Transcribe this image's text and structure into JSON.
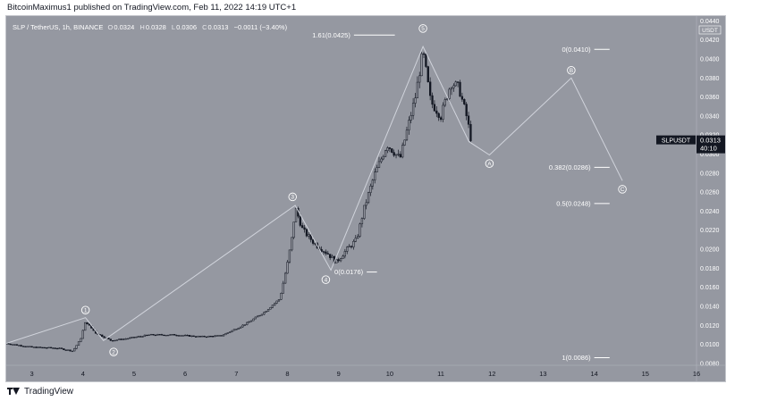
{
  "header": {
    "publish_text": "BitcoinMaximus1 published on TradingView.com, Feb 11, 2022 14:19 UTC+1"
  },
  "symbol_bar": {
    "pair": "SLP / TetherUS, 1h, BINANCE",
    "open_label": "O",
    "open": "0.0324",
    "high_label": "H",
    "high": "0.0328",
    "low_label": "L",
    "low": "0.0306",
    "close_label": "C",
    "close": "0.0313",
    "change": "−0.0011 (−3.40%)"
  },
  "footer": {
    "brand": "TradingView"
  },
  "colors": {
    "background": "#9598a1",
    "candle": "#131722",
    "wave_line": "#d1d4dc",
    "label_text": "#ffffff",
    "price_tag_bg": "#131722"
  },
  "chart_data": {
    "type": "candlestick",
    "title": "SLP / TetherUS, 1h, BINANCE",
    "ylim": [
      0.0078,
      0.0445
    ],
    "xlim": [
      2.5,
      16.0
    ],
    "y_ticks": [
      "0.0440",
      "0.0420",
      "0.0400",
      "0.0380",
      "0.0360",
      "0.0340",
      "0.0320",
      "0.0300",
      "0.0280",
      "0.0260",
      "0.0240",
      "0.0220",
      "0.0200",
      "0.0180",
      "0.0160",
      "0.0140",
      "0.0120",
      "0.0100",
      "0.0080"
    ],
    "y_tick_values": [
      0.044,
      0.042,
      0.04,
      0.038,
      0.036,
      0.034,
      0.032,
      0.03,
      0.028,
      0.026,
      0.024,
      0.022,
      0.02,
      0.018,
      0.016,
      0.014,
      0.012,
      0.01,
      0.008
    ],
    "axis_currency": "USDT",
    "x_ticks": [
      "3",
      "4",
      "5",
      "6",
      "7",
      "8",
      "9",
      "10",
      "11",
      "12",
      "13",
      "14",
      "15",
      "16"
    ],
    "x_tick_values": [
      3,
      4,
      5,
      6,
      7,
      8,
      9,
      10,
      11,
      12,
      13,
      14,
      15,
      16
    ],
    "price_path": [
      [
        2.5,
        0.0101
      ],
      [
        3.0,
        0.0097
      ],
      [
        3.5,
        0.0096
      ],
      [
        3.8,
        0.0093
      ],
      [
        3.95,
        0.0105
      ],
      [
        4.05,
        0.0124
      ],
      [
        4.25,
        0.0112
      ],
      [
        4.55,
        0.0104
      ],
      [
        4.85,
        0.0106
      ],
      [
        5.3,
        0.011
      ],
      [
        5.8,
        0.011
      ],
      [
        6.3,
        0.0108
      ],
      [
        6.7,
        0.0109
      ],
      [
        6.9,
        0.0114
      ],
      [
        7.2,
        0.0122
      ],
      [
        7.55,
        0.0134
      ],
      [
        7.85,
        0.0148
      ],
      [
        8.0,
        0.0185
      ],
      [
        8.1,
        0.0216
      ],
      [
        8.15,
        0.0244
      ],
      [
        8.3,
        0.022
      ],
      [
        8.55,
        0.0205
      ],
      [
        8.8,
        0.0195
      ],
      [
        8.95,
        0.0186
      ],
      [
        9.1,
        0.0196
      ],
      [
        9.35,
        0.021
      ],
      [
        9.5,
        0.0243
      ],
      [
        9.7,
        0.0278
      ],
      [
        9.95,
        0.031
      ],
      [
        10.2,
        0.0295
      ],
      [
        10.5,
        0.036
      ],
      [
        10.65,
        0.0408
      ],
      [
        10.8,
        0.0355
      ],
      [
        11.0,
        0.034
      ],
      [
        11.2,
        0.0375
      ],
      [
        11.35,
        0.037
      ],
      [
        11.5,
        0.034
      ],
      [
        11.6,
        0.0313
      ]
    ],
    "wave_path": [
      [
        2.5,
        0.0101
      ],
      [
        4.05,
        0.0128
      ],
      [
        4.4,
        0.0104
      ],
      [
        8.15,
        0.0246
      ],
      [
        8.85,
        0.0178
      ],
      [
        10.65,
        0.0413
      ],
      [
        11.55,
        0.0313
      ],
      [
        11.95,
        0.0299
      ],
      [
        13.55,
        0.038
      ],
      [
        14.55,
        0.0272
      ]
    ],
    "wave_labels": [
      {
        "label": "1",
        "x": 4.05,
        "y": 0.0136,
        "style": "circle"
      },
      {
        "label": "2",
        "x": 4.6,
        "y": 0.0092,
        "style": "circle"
      },
      {
        "label": "3",
        "x": 8.1,
        "y": 0.0255,
        "style": "circle"
      },
      {
        "label": "4",
        "x": 8.75,
        "y": 0.0168,
        "style": "circle"
      },
      {
        "label": "5",
        "x": 10.65,
        "y": 0.0432,
        "style": "circle"
      },
      {
        "label": "A",
        "x": 11.95,
        "y": 0.029,
        "style": "circle"
      },
      {
        "label": "B",
        "x": 13.55,
        "y": 0.0388,
        "style": "circle"
      },
      {
        "label": "C",
        "x": 14.55,
        "y": 0.0263,
        "style": "circle"
      }
    ],
    "fib_levels": [
      {
        "label": "1.61(0.0425)",
        "value": 0.0425,
        "x_from": 9.3,
        "x_to": 10.1,
        "label_x": 9.0
      },
      {
        "label": "0(0.0410)",
        "value": 0.041,
        "x_from": 14.0,
        "x_to": 14.3,
        "label_x": 13.2
      },
      {
        "label": "0.382(0.0286)",
        "value": 0.0286,
        "x_from": 14.0,
        "x_to": 14.3,
        "label_x": 12.9
      },
      {
        "label": "0.5(0.0248)",
        "value": 0.0248,
        "x_from": 14.0,
        "x_to": 14.3,
        "label_x": 13.1
      },
      {
        "label": "0(0.0176)",
        "value": 0.0176,
        "x_from": 9.55,
        "x_to": 9.75,
        "label_x": 9.0
      },
      {
        "label": "1(0.0086)",
        "value": 0.0086,
        "x_from": 14.0,
        "x_to": 14.3,
        "label_x": 13.25
      }
    ],
    "last_price": {
      "symbol": "SLPUSDT",
      "value": "0.0313",
      "countdown": "40:10",
      "y": 0.0313
    }
  }
}
